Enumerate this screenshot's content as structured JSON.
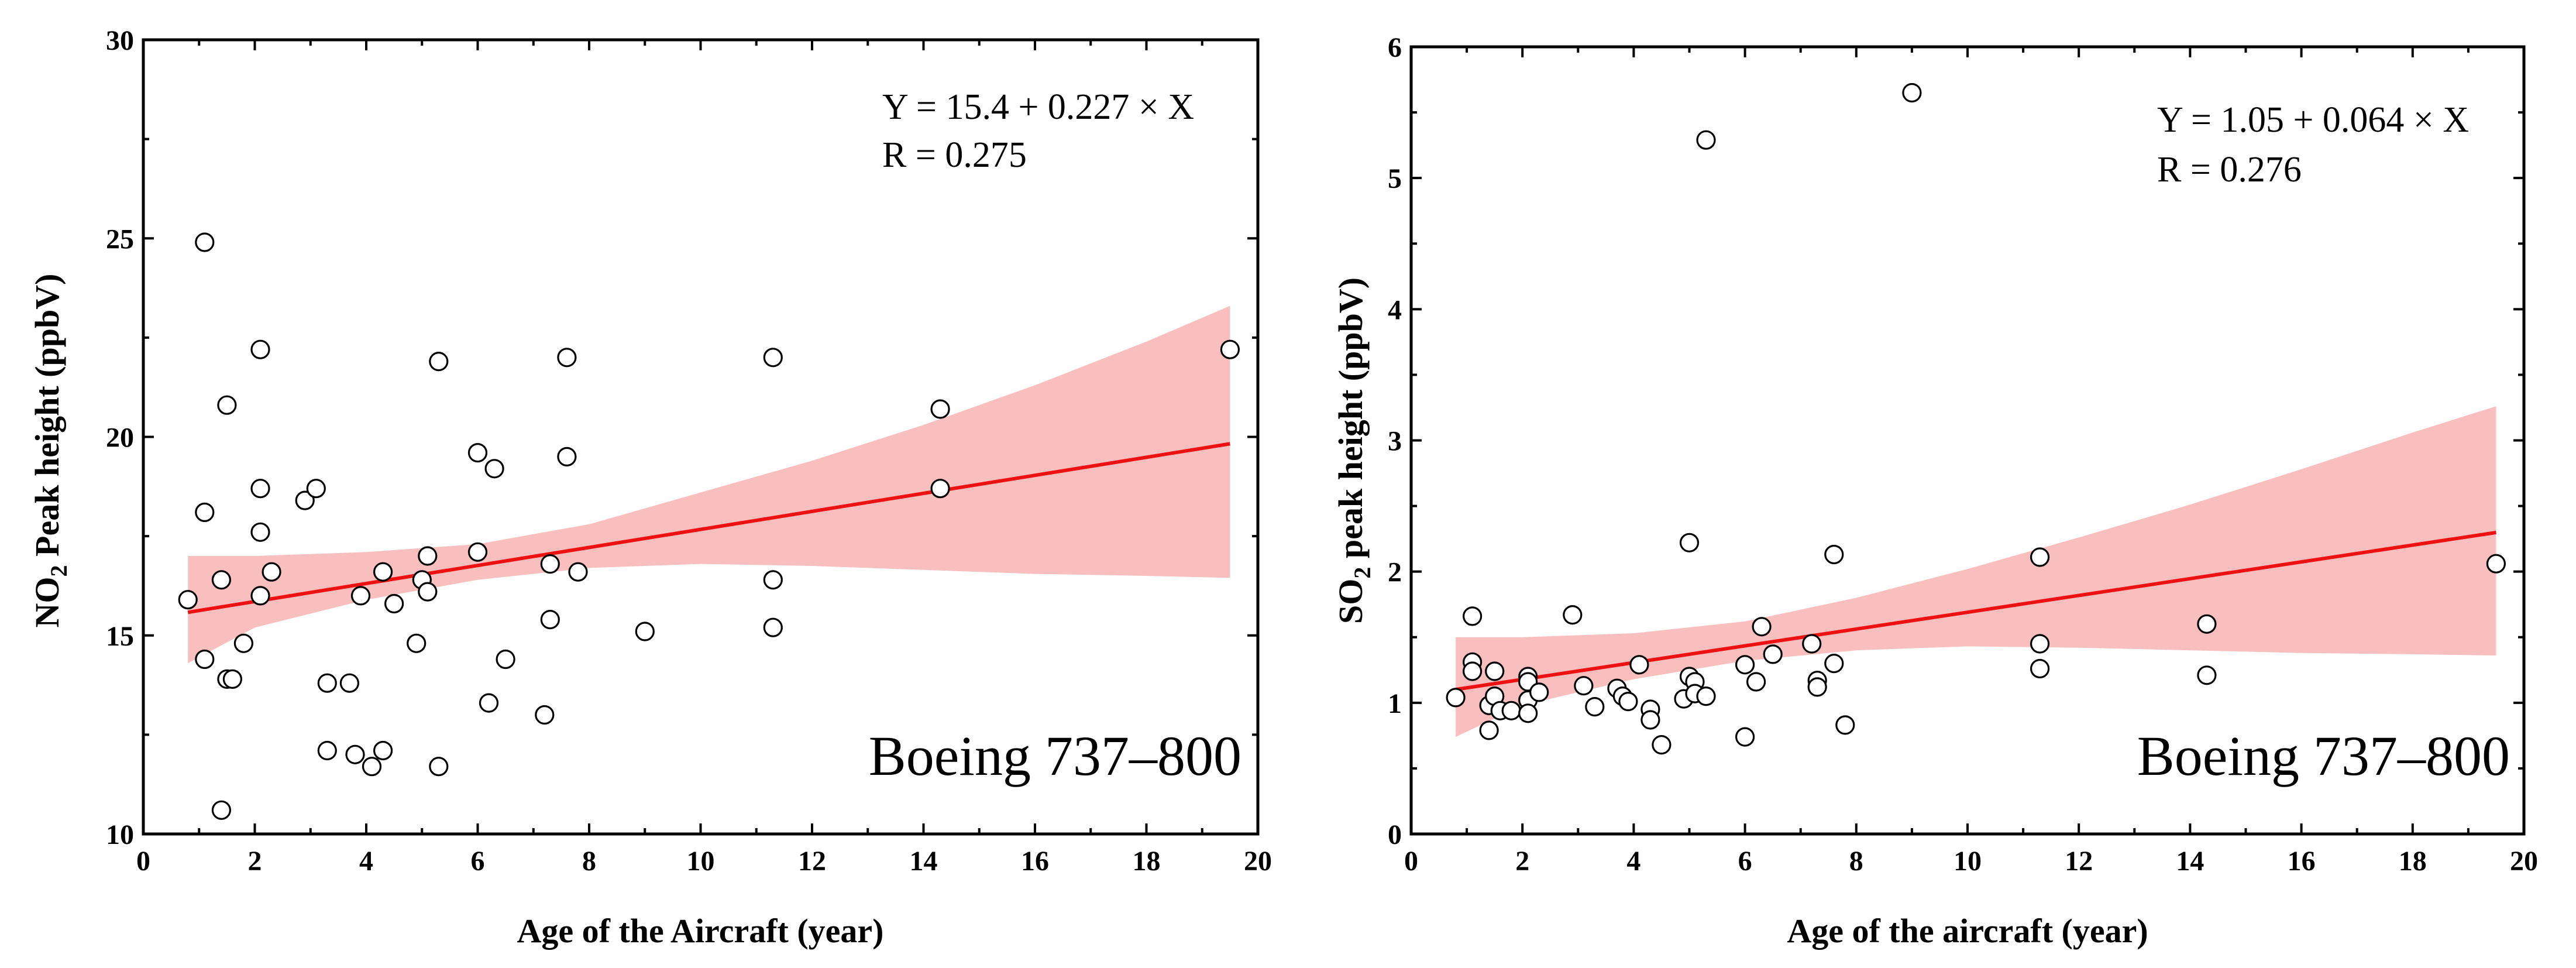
{
  "chart_data": [
    {
      "type": "scatter",
      "xlabel": "Age of the Aircraft (year)",
      "ylabel": "NO2 Peak height (ppbV)",
      "ylabel_parts": {
        "pre": "NO",
        "sub": "2",
        "post": " Peak height (ppbV)"
      },
      "xlim": [
        0,
        20
      ],
      "ylim": [
        10,
        30
      ],
      "xticks": [
        0,
        2,
        4,
        6,
        8,
        10,
        12,
        14,
        16,
        18,
        20
      ],
      "yticks": [
        10,
        15,
        20,
        25,
        30
      ],
      "equation": "Y = 15.4 + 0.227 × X",
      "r_text": "R = 0.275",
      "panel_label": "Boeing 737–800",
      "fit": {
        "intercept": 15.4,
        "slope": 0.227,
        "x_range": [
          0.8,
          19.5
        ]
      },
      "confidence_band": {
        "x": [
          0.8,
          2,
          4,
          6,
          8,
          10,
          12,
          14,
          16,
          18,
          19.5
        ],
        "lower": [
          14.3,
          15.2,
          15.9,
          16.4,
          16.7,
          16.8,
          16.75,
          16.65,
          16.55,
          16.5,
          16.45
        ],
        "upper": [
          17.0,
          17.0,
          17.1,
          17.3,
          17.8,
          18.6,
          19.4,
          20.3,
          21.3,
          22.4,
          23.3
        ]
      },
      "points": [
        [
          0.8,
          15.9
        ],
        [
          1.1,
          24.9
        ],
        [
          1.1,
          18.1
        ],
        [
          1.1,
          14.4
        ],
        [
          1.4,
          16.4
        ],
        [
          1.4,
          10.6
        ],
        [
          1.5,
          20.8
        ],
        [
          1.5,
          13.9
        ],
        [
          1.6,
          13.9
        ],
        [
          1.8,
          14.8
        ],
        [
          2.1,
          22.2
        ],
        [
          2.1,
          18.7
        ],
        [
          2.1,
          17.6
        ],
        [
          2.1,
          16.0
        ],
        [
          2.3,
          16.6
        ],
        [
          2.9,
          18.4
        ],
        [
          3.1,
          18.7
        ],
        [
          3.3,
          13.8
        ],
        [
          3.3,
          12.1
        ],
        [
          3.7,
          13.8
        ],
        [
          3.8,
          12.0
        ],
        [
          3.9,
          16.0
        ],
        [
          4.1,
          11.7
        ],
        [
          4.3,
          16.6
        ],
        [
          4.3,
          12.1
        ],
        [
          4.5,
          15.8
        ],
        [
          4.9,
          14.8
        ],
        [
          5.0,
          16.4
        ],
        [
          5.1,
          17.0
        ],
        [
          5.1,
          16.1
        ],
        [
          5.3,
          21.9
        ],
        [
          5.3,
          11.7
        ],
        [
          6.0,
          19.6
        ],
        [
          6.0,
          17.1
        ],
        [
          6.2,
          13.3
        ],
        [
          6.3,
          19.2
        ],
        [
          6.5,
          14.4
        ],
        [
          7.2,
          13.0
        ],
        [
          7.3,
          16.8
        ],
        [
          7.3,
          15.4
        ],
        [
          7.6,
          22.0
        ],
        [
          7.6,
          19.5
        ],
        [
          7.8,
          16.6
        ],
        [
          9.0,
          15.1
        ],
        [
          11.3,
          22.0
        ],
        [
          11.3,
          16.4
        ],
        [
          11.3,
          15.2
        ],
        [
          14.3,
          20.7
        ],
        [
          14.3,
          18.7
        ],
        [
          19.5,
          22.2
        ]
      ]
    },
    {
      "type": "scatter",
      "xlabel": "Age of the aircraft (year)",
      "ylabel": "SO2 peak height (ppbV)",
      "ylabel_parts": {
        "pre": "SO",
        "sub": "2",
        "post": " peak height (ppbV)"
      },
      "xlim": [
        0,
        20
      ],
      "ylim": [
        0,
        6
      ],
      "xticks": [
        0,
        2,
        4,
        6,
        8,
        10,
        12,
        14,
        16,
        18,
        20
      ],
      "yticks": [
        0,
        1,
        2,
        3,
        4,
        5,
        6
      ],
      "equation": "Y = 1.05 + 0.064 × X",
      "r_text": "R = 0.276",
      "panel_label": "Boeing 737–800",
      "fit": {
        "intercept": 1.05,
        "slope": 0.064,
        "x_range": [
          0.8,
          19.5
        ]
      },
      "confidence_band": {
        "x": [
          0.8,
          2,
          4,
          6,
          8,
          10,
          12,
          14,
          16,
          18,
          19.5
        ],
        "lower": [
          0.74,
          0.98,
          1.18,
          1.32,
          1.4,
          1.43,
          1.42,
          1.4,
          1.38,
          1.37,
          1.36
        ],
        "upper": [
          1.5,
          1.5,
          1.53,
          1.62,
          1.8,
          2.02,
          2.26,
          2.51,
          2.78,
          3.06,
          3.26
        ]
      },
      "points": [
        [
          0.8,
          1.04
        ],
        [
          1.1,
          1.66
        ],
        [
          1.1,
          1.31
        ],
        [
          1.1,
          1.24
        ],
        [
          1.4,
          0.98
        ],
        [
          1.4,
          0.79
        ],
        [
          1.5,
          1.24
        ],
        [
          1.5,
          1.05
        ],
        [
          1.6,
          0.94
        ],
        [
          1.8,
          0.94
        ],
        [
          2.1,
          1.2
        ],
        [
          2.1,
          1.16
        ],
        [
          2.1,
          1.02
        ],
        [
          2.1,
          0.92
        ],
        [
          2.3,
          1.08
        ],
        [
          2.9,
          1.67
        ],
        [
          3.1,
          1.13
        ],
        [
          3.3,
          0.97
        ],
        [
          3.7,
          1.11
        ],
        [
          3.8,
          1.05
        ],
        [
          3.9,
          1.01
        ],
        [
          4.1,
          1.29
        ],
        [
          4.3,
          0.95
        ],
        [
          4.3,
          0.87
        ],
        [
          4.5,
          0.68
        ],
        [
          4.9,
          1.03
        ],
        [
          5.0,
          2.22
        ],
        [
          5.0,
          1.2
        ],
        [
          5.1,
          1.16
        ],
        [
          5.1,
          1.07
        ],
        [
          5.3,
          5.29
        ],
        [
          5.3,
          1.05
        ],
        [
          6.0,
          1.29
        ],
        [
          6.0,
          0.74
        ],
        [
          6.2,
          1.16
        ],
        [
          6.3,
          1.58
        ],
        [
          6.5,
          1.37
        ],
        [
          7.2,
          1.45
        ],
        [
          7.3,
          1.17
        ],
        [
          7.3,
          1.12
        ],
        [
          7.6,
          2.13
        ],
        [
          7.6,
          1.3
        ],
        [
          7.8,
          0.83
        ],
        [
          9.0,
          5.65
        ],
        [
          11.3,
          2.11
        ],
        [
          11.3,
          1.45
        ],
        [
          11.3,
          1.26
        ],
        [
          14.3,
          1.6
        ],
        [
          14.3,
          1.21
        ],
        [
          19.5,
          2.06
        ]
      ]
    }
  ]
}
